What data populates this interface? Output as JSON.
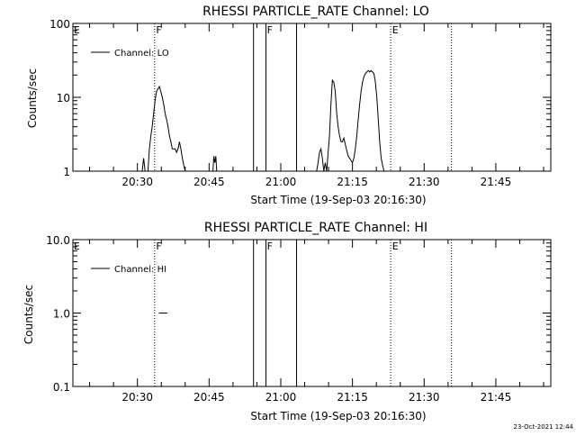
{
  "chart_data": [
    {
      "type": "line",
      "title": "RHESSI PARTICLE_RATE Channel: LO",
      "ylabel": "Counts/sec",
      "xlabel": "Start Time (19-Sep-03 20:16:30)",
      "yscale": "log",
      "ylim": [
        1,
        100
      ],
      "xlim_minutes_after_start": [
        0,
        100
      ],
      "yticks": [
        1,
        10,
        100
      ],
      "ytick_labels": [
        "1",
        "10",
        "100"
      ],
      "xticks_minutes_after_start": [
        13.5,
        28.5,
        43.5,
        58.5,
        73.5,
        88.5
      ],
      "xtick_labels": [
        "20:30",
        "20:45",
        "21:00",
        "21:15",
        "21:30",
        "21:45"
      ],
      "legend": {
        "entries": [
          "Channel: LO"
        ],
        "position": "top-left"
      },
      "series": [
        {
          "name": "Channel: LO",
          "x": [
            14.5,
            14.8,
            15.1,
            15.4,
            15.7,
            16.0,
            16.3,
            16.6,
            16.9,
            17.2,
            17.5,
            17.8,
            18.1,
            18.4,
            18.7,
            19.0,
            19.3,
            19.6,
            19.9,
            20.2,
            20.5,
            20.8,
            21.1,
            21.4,
            21.7,
            22.0,
            22.3,
            22.6,
            22.9,
            23.2,
            23.5,
            23.8,
            24.1,
            24.4,
            24.7,
            25.0,
            25.3,
            25.6,
            25.9
          ],
          "y": [
            1,
            1.5,
            1,
            1,
            1,
            2,
            3,
            4,
            6,
            9,
            12,
            13,
            14,
            12,
            10,
            8,
            6,
            5,
            4,
            3,
            2.5,
            2,
            2,
            2,
            1.8,
            2,
            2.5,
            2,
            1.5,
            1.2,
            1,
            1,
            1,
            1,
            1,
            1,
            1,
            1,
            1
          ]
        },
        {
          "name": "Channel: LO",
          "x": [
            29.3,
            29.5,
            29.7,
            29.9,
            30.1
          ],
          "y": [
            1,
            1.6,
            1.3,
            1.6,
            1
          ],
          "note_series": ""
        },
        {
          "name": "Channel: LO",
          "x": [
            51.0,
            51.3,
            51.6,
            51.9,
            52.2,
            52.5,
            52.8,
            53.1,
            53.4,
            53.7,
            54.0,
            54.3,
            54.6,
            54.9,
            55.2,
            55.5,
            55.8,
            56.1,
            56.4,
            56.7,
            57.0,
            57.3,
            57.6,
            57.9,
            58.2,
            58.5,
            58.8,
            59.1,
            59.4,
            59.7,
            60.0,
            60.3,
            60.6,
            60.9,
            61.2,
            61.5,
            61.8,
            62.1,
            62.4,
            62.7,
            63.0,
            63.3,
            63.6,
            63.9,
            64.2,
            64.5,
            64.8,
            65.1,
            65.4,
            65.7,
            66.0,
            66.3,
            66.6,
            66.9,
            67.2,
            67.5,
            67.8,
            68.1,
            68.4,
            68.7,
            69.0
          ],
          "y": [
            1,
            1.3,
            1.8,
            2,
            1.5,
            1,
            1.3,
            1,
            1.8,
            3,
            8,
            17,
            16,
            12,
            6,
            4,
            3,
            2.5,
            2.5,
            2.8,
            2.3,
            1.9,
            1.6,
            1.5,
            1.4,
            1.3,
            1.5,
            2,
            3,
            5,
            8,
            12,
            16,
            19,
            21,
            22,
            23,
            22,
            23,
            22,
            21,
            16,
            10,
            5,
            2.5,
            1.5,
            1.2,
            1,
            1,
            1,
            1,
            1,
            1,
            1,
            1,
            1,
            1,
            1,
            1,
            1,
            1
          ]
        }
      ]
    },
    {
      "type": "line",
      "title": "RHESSI PARTICLE_RATE Channel: HI",
      "ylabel": "Counts/sec",
      "xlabel": "Start Time (19-Sep-03 20:16:30)",
      "yscale": "log",
      "ylim": [
        0.1,
        10
      ],
      "xlim_minutes_after_start": [
        0,
        100
      ],
      "yticks": [
        0.1,
        1,
        10
      ],
      "ytick_labels": [
        "0.1",
        "1.0",
        "10.0"
      ],
      "xticks_minutes_after_start": [
        13.5,
        28.5,
        43.5,
        58.5,
        73.5,
        88.5
      ],
      "xtick_labels": [
        "20:30",
        "20:45",
        "21:00",
        "21:15",
        "21:30",
        "21:45"
      ],
      "legend": {
        "entries": [
          "Channel: HI"
        ],
        "position": "top-left"
      },
      "series": [
        {
          "name": "Channel: HI",
          "x": [
            18.0,
            19.8
          ],
          "y": [
            1,
            1
          ]
        }
      ]
    }
  ],
  "markers": {
    "solid_lines_minutes": [
      37.8,
      40.4,
      46.8
    ],
    "dotted_lines_minutes": [
      17.1,
      66.5,
      79.2
    ],
    "flags": [
      {
        "label": "E",
        "x": 0.2
      },
      {
        "label": "F",
        "x": 17.4
      },
      {
        "label": "F",
        "x": 40.6
      },
      {
        "label": "E",
        "x": 66.8
      }
    ]
  },
  "colors": {
    "background": "#ffffff",
    "foreground": "#000000"
  },
  "footer": {
    "timestamp": "23-Oct-2021 12:44"
  }
}
